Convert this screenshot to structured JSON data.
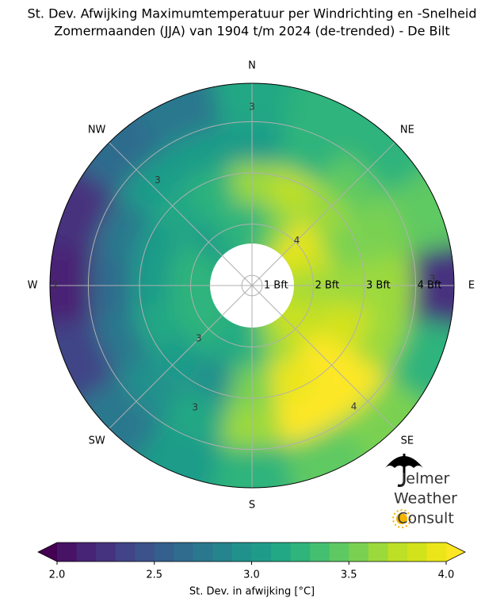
{
  "chart_data": {
    "type": "polar-contour",
    "title": "St. Dev. Afwijking Maximumtemperatuur per Windrichting en -Snelheid",
    "subtitle": "Zomermaanden (JJA) van 1904 t/m 2024 (de-trended) - De Bilt",
    "theta_labels": [
      "N",
      "NE",
      "E",
      "SE",
      "S",
      "SW",
      "W",
      "NW"
    ],
    "rlim": [
      0.8,
      4.75
    ],
    "rticks": [
      {
        "value": 1,
        "label": "1 Bft"
      },
      {
        "value": 2,
        "label": "2 Bft"
      },
      {
        "value": 3,
        "label": "3 Bft"
      },
      {
        "value": 4,
        "label": "4 Bft"
      }
    ],
    "grid": true,
    "field": [
      [
        3.3,
        3.5,
        3.9,
        3.8,
        3.6,
        3.7,
        3.8,
        3.6,
        3.3,
        3.1,
        3.2,
        3.3,
        3.3,
        3.2,
        3.0,
        3.2
      ],
      [
        3.6,
        3.7,
        3.6,
        3.5,
        3.6,
        3.8,
        4.0,
        3.9,
        3.5,
        2.9,
        3.0,
        3.1,
        3.0,
        3.0,
        3.1,
        3.3
      ],
      [
        3.0,
        3.3,
        3.4,
        3.5,
        3.6,
        3.6,
        4.0,
        4.0,
        3.6,
        3.1,
        2.9,
        2.7,
        2.6,
        2.7,
        3.0,
        3.0
      ],
      [
        3.1,
        3.3,
        3.3,
        3.4,
        2.3,
        3.2,
        3.5,
        3.4,
        3.2,
        3.0,
        2.8,
        2.4,
        2.1,
        2.3,
        2.6,
        2.8
      ]
    ],
    "contour_levels": [
      2,
      3,
      4
    ],
    "clim": [
      2.0,
      4.0
    ],
    "colors": [
      "#471365",
      "#482475",
      "#46337e",
      "#414487",
      "#3b528b",
      "#355f8d",
      "#2f6c8e",
      "#2a788e",
      "#25848e",
      "#21918c",
      "#1e9c89",
      "#22a884",
      "#2fb47c",
      "#44bf70",
      "#5ec962",
      "#7ad151",
      "#9bd93c",
      "#bddf26",
      "#d2e21b",
      "#ebe51a"
    ],
    "under_color": "#440154",
    "over_color": "#fde725",
    "colorbar_ticks": [
      {
        "value": 2.0,
        "label": "2.0"
      },
      {
        "value": 2.5,
        "label": "2.5"
      },
      {
        "value": 3.0,
        "label": "3.0"
      },
      {
        "value": 3.5,
        "label": "3.5"
      },
      {
        "value": 4.0,
        "label": "4.0"
      }
    ],
    "colorbar_label": "St. Dev. in afwijking [°C]",
    "logo": [
      "Jelmer",
      "Weather",
      "Consult"
    ]
  }
}
